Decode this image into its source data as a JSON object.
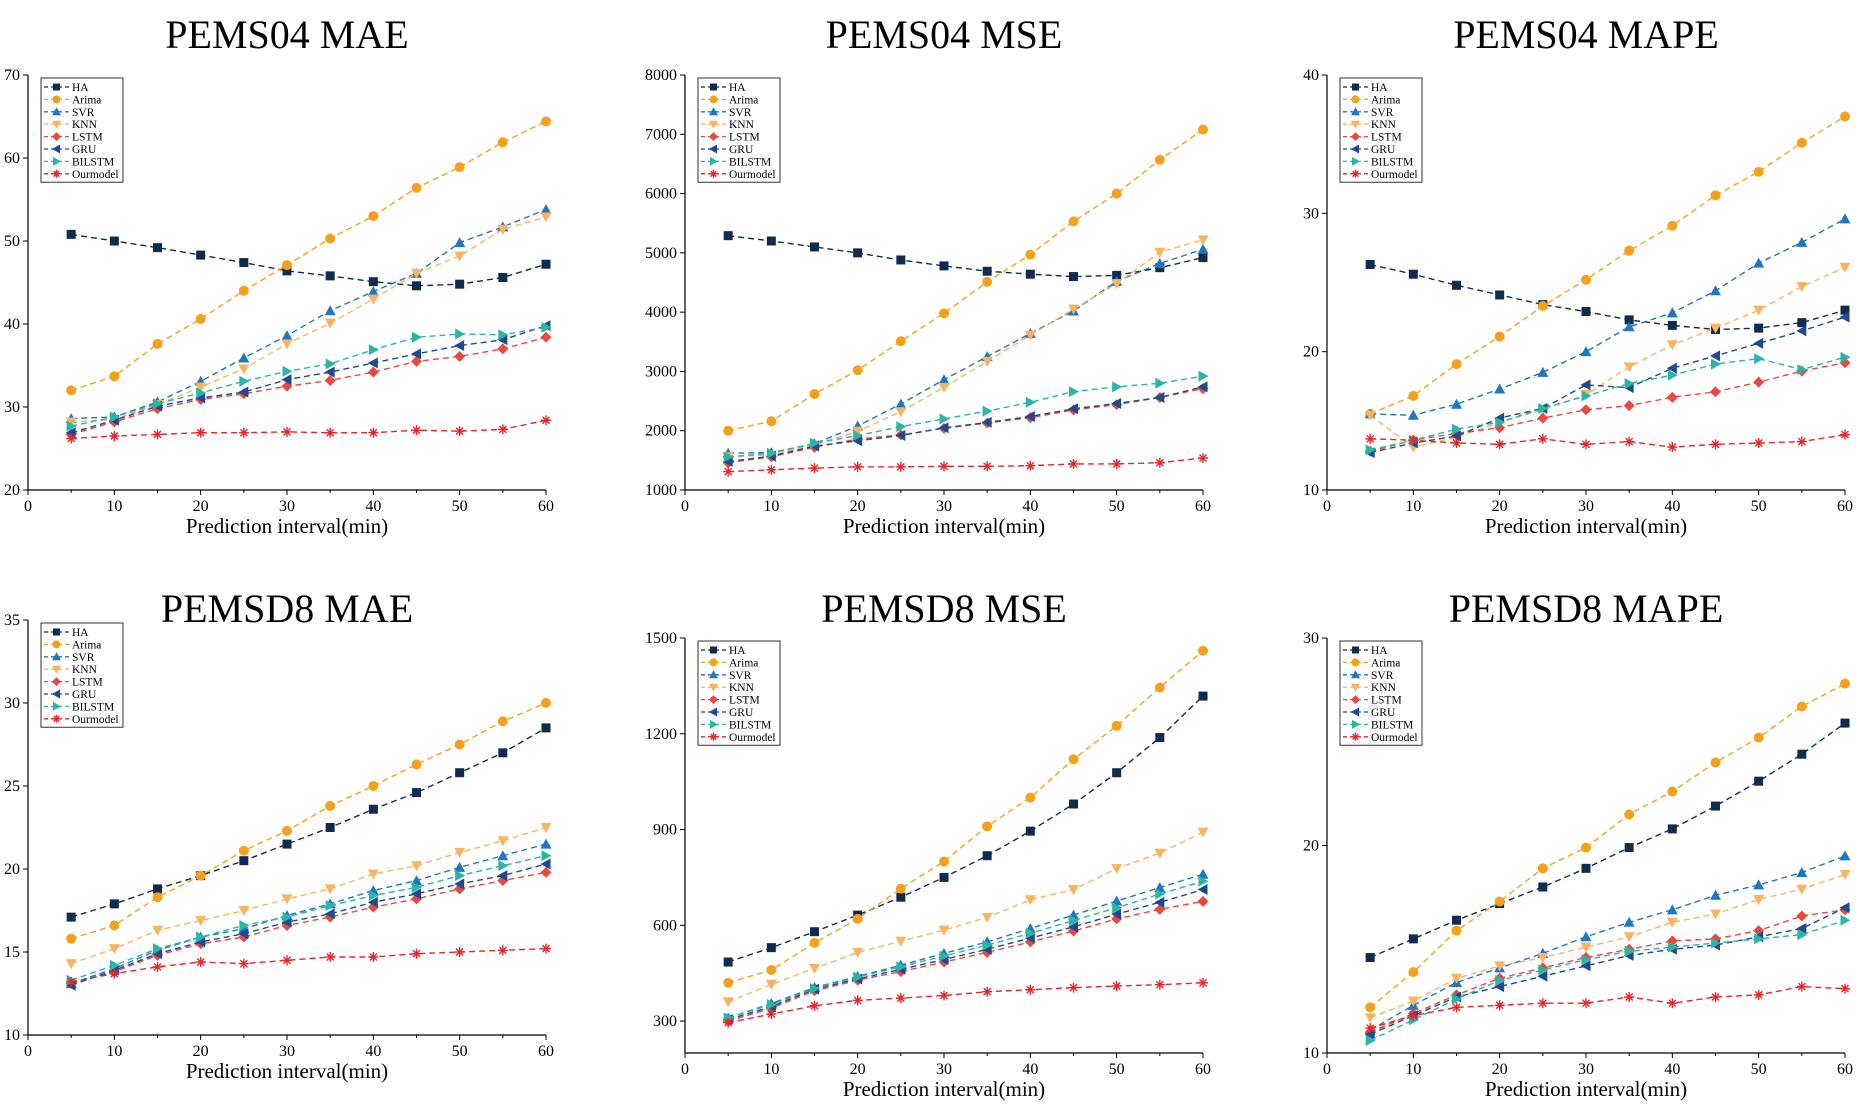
{
  "chart_data": [
    {
      "type": "line",
      "title": "PEMS04 MAE",
      "xlabel": "Prediction interval(min)",
      "ylabel": "",
      "xlim": [
        0,
        60
      ],
      "ylim": [
        20,
        70
      ],
      "xticks": [
        0,
        10,
        20,
        30,
        40,
        50,
        60
      ],
      "yticks": [
        20,
        30,
        40,
        50,
        60,
        70
      ],
      "x": [
        5,
        10,
        15,
        20,
        25,
        30,
        35,
        40,
        45,
        50,
        55,
        60
      ],
      "legend_position": "top-left",
      "series": [
        {
          "name": "HA",
          "values": [
            50.8,
            50.0,
            49.2,
            48.3,
            47.4,
            46.4,
            45.8,
            45.1,
            44.6,
            44.8,
            45.6,
            47.2
          ]
        },
        {
          "name": "Arima",
          "values": [
            32.0,
            33.7,
            37.6,
            40.6,
            44.0,
            47.1,
            50.3,
            53.0,
            56.4,
            58.9,
            61.9,
            64.4
          ]
        },
        {
          "name": "SVR",
          "values": [
            28.6,
            28.8,
            30.6,
            33.1,
            35.9,
            38.6,
            41.6,
            43.9,
            46.1,
            49.8,
            51.7,
            53.8
          ]
        },
        {
          "name": "KNN",
          "values": [
            28.2,
            28.5,
            30.3,
            32.4,
            34.6,
            37.6,
            40.1,
            43.0,
            46.1,
            48.2,
            51.4,
            52.9
          ]
        },
        {
          "name": "LSTM",
          "values": [
            26.7,
            28.2,
            29.8,
            30.9,
            31.6,
            32.5,
            33.2,
            34.2,
            35.5,
            36.1,
            37.0,
            38.4
          ]
        },
        {
          "name": "GRU",
          "values": [
            26.9,
            28.4,
            30.1,
            31.1,
            31.8,
            33.3,
            34.2,
            35.3,
            36.4,
            37.4,
            38.1,
            39.8
          ]
        },
        {
          "name": "BILSTM",
          "values": [
            27.7,
            28.8,
            30.4,
            31.7,
            33.1,
            34.3,
            35.2,
            36.9,
            38.4,
            38.8,
            38.7,
            39.6
          ]
        },
        {
          "name": "Ourmodel",
          "values": [
            26.2,
            26.5,
            26.7,
            26.9,
            26.9,
            27.0,
            26.9,
            26.9,
            27.2,
            27.1,
            27.3,
            28.4
          ]
        }
      ]
    },
    {
      "type": "line",
      "title": "PEMS04 MSE",
      "xlabel": "Prediction interval(min)",
      "ylabel": "",
      "xlim": [
        0,
        60
      ],
      "ylim": [
        1000,
        8000
      ],
      "xticks": [
        0,
        10,
        20,
        30,
        40,
        50,
        60
      ],
      "yticks": [
        1000,
        2000,
        3000,
        4000,
        5000,
        6000,
        7000,
        8000
      ],
      "x": [
        5,
        10,
        15,
        20,
        25,
        30,
        35,
        40,
        45,
        50,
        55,
        60
      ],
      "legend_position": "top-left",
      "series": [
        {
          "name": "HA",
          "values": [
            5290,
            5200,
            5100,
            5000,
            4880,
            4780,
            4690,
            4640,
            4600,
            4620,
            4750,
            4920
          ]
        },
        {
          "name": "Arima",
          "values": [
            2000,
            2160,
            2620,
            3020,
            3510,
            3980,
            4510,
            4970,
            5530,
            6000,
            6570,
            7080
          ]
        },
        {
          "name": "SVR",
          "values": [
            1620,
            1630,
            1780,
            2080,
            2450,
            2860,
            3250,
            3640,
            4020,
            4520,
            4820,
            5060
          ]
        },
        {
          "name": "KNN",
          "values": [
            1560,
            1590,
            1760,
            1990,
            2320,
            2730,
            3170,
            3610,
            4050,
            4480,
            5010,
            5220
          ]
        },
        {
          "name": "LSTM",
          "values": [
            1460,
            1560,
            1720,
            1860,
            1930,
            2040,
            2130,
            2220,
            2350,
            2440,
            2560,
            2710
          ]
        },
        {
          "name": "GRU",
          "values": [
            1480,
            1570,
            1740,
            1830,
            1920,
            2050,
            2140,
            2240,
            2370,
            2460,
            2560,
            2740
          ]
        },
        {
          "name": "BILSTM",
          "values": [
            1560,
            1620,
            1790,
            1920,
            2070,
            2200,
            2330,
            2480,
            2660,
            2740,
            2800,
            2920
          ]
        },
        {
          "name": "Ourmodel",
          "values": [
            1310,
            1340,
            1370,
            1390,
            1390,
            1400,
            1400,
            1410,
            1440,
            1440,
            1460,
            1540
          ]
        }
      ]
    },
    {
      "type": "line",
      "title": "PEMS04 MAPE",
      "xlabel": "Prediction interval(min)",
      "ylabel": "",
      "xlim": [
        0,
        60
      ],
      "ylim": [
        10,
        40
      ],
      "xticks": [
        0,
        10,
        20,
        30,
        40,
        50,
        60
      ],
      "yticks": [
        10,
        20,
        30,
        40
      ],
      "x": [
        5,
        10,
        15,
        20,
        25,
        30,
        35,
        40,
        45,
        50,
        55,
        60
      ],
      "legend_position": "top-left",
      "series": [
        {
          "name": "HA",
          "values": [
            26.3,
            25.6,
            24.8,
            24.1,
            23.4,
            22.9,
            22.3,
            21.9,
            21.6,
            21.7,
            22.1,
            23.0
          ]
        },
        {
          "name": "Arima",
          "values": [
            15.5,
            16.8,
            19.1,
            21.1,
            23.3,
            25.2,
            27.3,
            29.1,
            31.3,
            33.0,
            35.1,
            37.0
          ]
        },
        {
          "name": "SVR",
          "values": [
            15.5,
            15.4,
            16.2,
            17.3,
            18.5,
            20.0,
            21.8,
            22.8,
            24.4,
            26.4,
            27.9,
            29.6
          ]
        },
        {
          "name": "KNN",
          "values": [
            15.4,
            13.1,
            13.8,
            14.9,
            15.8,
            16.9,
            18.9,
            20.5,
            21.7,
            23.0,
            24.7,
            26.1
          ]
        },
        {
          "name": "LSTM",
          "values": [
            12.8,
            13.6,
            14.1,
            14.5,
            15.2,
            15.8,
            16.1,
            16.7,
            17.1,
            17.8,
            18.6,
            19.2
          ]
        },
        {
          "name": "GRU",
          "values": [
            12.7,
            13.4,
            13.9,
            15.2,
            15.9,
            17.6,
            17.4,
            18.8,
            19.7,
            20.6,
            21.5,
            22.5
          ]
        },
        {
          "name": "BILSTM",
          "values": [
            12.9,
            13.6,
            14.4,
            14.9,
            15.9,
            16.8,
            17.7,
            18.3,
            19.1,
            19.5,
            18.7,
            19.6
          ]
        },
        {
          "name": "Ourmodel",
          "values": [
            13.7,
            13.6,
            13.4,
            13.3,
            13.7,
            13.3,
            13.5,
            13.1,
            13.3,
            13.4,
            13.5,
            14.0
          ]
        }
      ]
    },
    {
      "type": "line",
      "title": "PEMSD8 MAE",
      "xlabel": "Prediction interval(min)",
      "ylabel": "",
      "xlim": [
        0,
        60
      ],
      "ylim": [
        10,
        35
      ],
      "xticks": [
        0,
        10,
        20,
        30,
        40,
        50,
        60
      ],
      "yticks": [
        10,
        15,
        20,
        25,
        30,
        35
      ],
      "x": [
        5,
        10,
        15,
        20,
        25,
        30,
        35,
        40,
        45,
        50,
        55,
        60
      ],
      "legend_position": "top-left",
      "series": [
        {
          "name": "HA",
          "values": [
            17.1,
            17.9,
            18.8,
            19.6,
            20.5,
            21.5,
            22.5,
            23.6,
            24.6,
            25.8,
            27.0,
            28.5
          ]
        },
        {
          "name": "Arima",
          "values": [
            15.8,
            16.6,
            18.3,
            19.6,
            21.1,
            22.3,
            23.8,
            25.0,
            26.3,
            27.5,
            28.9,
            30.0
          ]
        },
        {
          "name": "SVR",
          "values": [
            13.1,
            14.0,
            15.1,
            15.9,
            16.4,
            17.2,
            17.9,
            18.7,
            19.3,
            20.1,
            20.8,
            21.5
          ]
        },
        {
          "name": "KNN",
          "values": [
            14.3,
            15.2,
            16.3,
            16.9,
            17.5,
            18.2,
            18.8,
            19.7,
            20.2,
            21.0,
            21.7,
            22.5
          ]
        },
        {
          "name": "LSTM",
          "values": [
            13.1,
            13.8,
            14.8,
            15.5,
            15.9,
            16.6,
            17.1,
            17.7,
            18.2,
            18.8,
            19.3,
            19.8
          ]
        },
        {
          "name": "GRU",
          "values": [
            13.0,
            13.9,
            14.9,
            15.6,
            16.1,
            16.8,
            17.3,
            18.0,
            18.5,
            19.1,
            19.6,
            20.3
          ]
        },
        {
          "name": "BILSTM",
          "values": [
            13.3,
            14.2,
            15.2,
            15.9,
            16.6,
            17.1,
            17.8,
            18.4,
            18.9,
            19.6,
            20.2,
            20.8
          ]
        },
        {
          "name": "Ourmodel",
          "values": [
            13.2,
            13.7,
            14.1,
            14.4,
            14.3,
            14.5,
            14.7,
            14.7,
            14.9,
            15.0,
            15.1,
            15.2
          ]
        }
      ]
    },
    {
      "type": "line",
      "title": "PEMSD8 MSE",
      "xlabel": "Prediction interval(min)",
      "ylabel": "",
      "xlim": [
        0,
        60
      ],
      "ylim": [
        200,
        1500
      ],
      "xticks": [
        0,
        10,
        20,
        30,
        40,
        50,
        60
      ],
      "yticks": [
        300,
        600,
        900,
        1200,
        1500
      ],
      "x": [
        5,
        10,
        15,
        20,
        25,
        30,
        35,
        40,
        45,
        50,
        55,
        60
      ],
      "legend_position": "top-left",
      "series": [
        {
          "name": "HA",
          "values": [
            485,
            530,
            580,
            632,
            688,
            750,
            818,
            895,
            980,
            1078,
            1188,
            1318
          ]
        },
        {
          "name": "Arima",
          "values": [
            420,
            460,
            545,
            620,
            715,
            800,
            910,
            1000,
            1120,
            1225,
            1345,
            1460
          ]
        },
        {
          "name": "SVR",
          "values": [
            310,
            355,
            405,
            440,
            475,
            512,
            548,
            590,
            632,
            676,
            718,
            760
          ]
        },
        {
          "name": "KNN",
          "values": [
            360,
            415,
            465,
            515,
            550,
            585,
            625,
            680,
            712,
            778,
            826,
            892
          ]
        },
        {
          "name": "LSTM",
          "values": [
            300,
            340,
            395,
            428,
            455,
            485,
            515,
            548,
            582,
            620,
            650,
            675
          ]
        },
        {
          "name": "GRU",
          "values": [
            305,
            345,
            400,
            432,
            462,
            493,
            525,
            560,
            595,
            635,
            672,
            712
          ]
        },
        {
          "name": "BILSTM",
          "values": [
            310,
            352,
            402,
            438,
            470,
            504,
            538,
            575,
            615,
            655,
            698,
            738
          ]
        },
        {
          "name": "Ourmodel",
          "values": [
            295,
            322,
            348,
            365,
            372,
            380,
            392,
            398,
            405,
            410,
            414,
            420
          ]
        }
      ]
    },
    {
      "type": "line",
      "title": "PEMSD8 MAPE",
      "xlabel": "Prediction interval(min)",
      "ylabel": "",
      "xlim": [
        0,
        60
      ],
      "ylim": [
        10,
        30
      ],
      "xticks": [
        0,
        10,
        20,
        30,
        40,
        50,
        60
      ],
      "yticks": [
        10,
        20,
        30
      ],
      "x": [
        5,
        10,
        15,
        20,
        25,
        30,
        35,
        40,
        45,
        50,
        55,
        60
      ],
      "legend_position": "top-left",
      "series": [
        {
          "name": "HA",
          "values": [
            14.6,
            15.5,
            16.4,
            17.2,
            18.0,
            18.9,
            19.9,
            20.8,
            21.9,
            23.1,
            24.4,
            25.9
          ]
        },
        {
          "name": "Arima",
          "values": [
            12.2,
            13.9,
            15.9,
            17.3,
            18.9,
            19.9,
            21.5,
            22.6,
            24.0,
            25.2,
            26.7,
            27.8
          ]
        },
        {
          "name": "SVR",
          "values": [
            11.1,
            12.3,
            13.4,
            14.1,
            14.8,
            15.6,
            16.3,
            16.9,
            17.6,
            18.1,
            18.7,
            19.5
          ]
        },
        {
          "name": "KNN",
          "values": [
            11.7,
            12.5,
            13.6,
            14.2,
            14.6,
            15.1,
            15.6,
            16.3,
            16.7,
            17.4,
            17.9,
            18.6
          ]
        },
        {
          "name": "LSTM",
          "values": [
            11.0,
            11.9,
            12.8,
            13.6,
            14.1,
            14.6,
            15.0,
            15.4,
            15.5,
            15.9,
            16.6,
            16.9
          ]
        },
        {
          "name": "GRU",
          "values": [
            10.9,
            11.8,
            12.7,
            13.2,
            13.7,
            14.2,
            14.7,
            15.0,
            15.2,
            15.6,
            16.0,
            17.0
          ]
        },
        {
          "name": "BILSTM",
          "values": [
            10.6,
            11.6,
            12.6,
            13.5,
            14.0,
            14.5,
            14.9,
            15.1,
            15.3,
            15.5,
            15.7,
            16.4
          ]
        },
        {
          "name": "Ourmodel",
          "values": [
            11.2,
            11.8,
            12.2,
            12.3,
            12.4,
            12.4,
            12.7,
            12.4,
            12.7,
            12.8,
            13.2,
            13.1
          ]
        }
      ]
    }
  ],
  "series_styles": [
    {
      "name": "HA",
      "color": "#0f2c4f",
      "marker": "square"
    },
    {
      "name": "Arima",
      "color": "#f5a11c",
      "marker": "circle"
    },
    {
      "name": "SVR",
      "color": "#1f77c0",
      "marker": "triangle-up"
    },
    {
      "name": "KNN",
      "color": "#fbb35f",
      "marker": "triangle-down"
    },
    {
      "name": "LSTM",
      "color": "#e84a3f",
      "marker": "diamond"
    },
    {
      "name": "GRU",
      "color": "#1d4a91",
      "marker": "triangle-left"
    },
    {
      "name": "BILSTM",
      "color": "#2bb5a6",
      "marker": "triangle-right"
    },
    {
      "name": "Ourmodel",
      "color": "#e8262a",
      "marker": "star"
    }
  ]
}
